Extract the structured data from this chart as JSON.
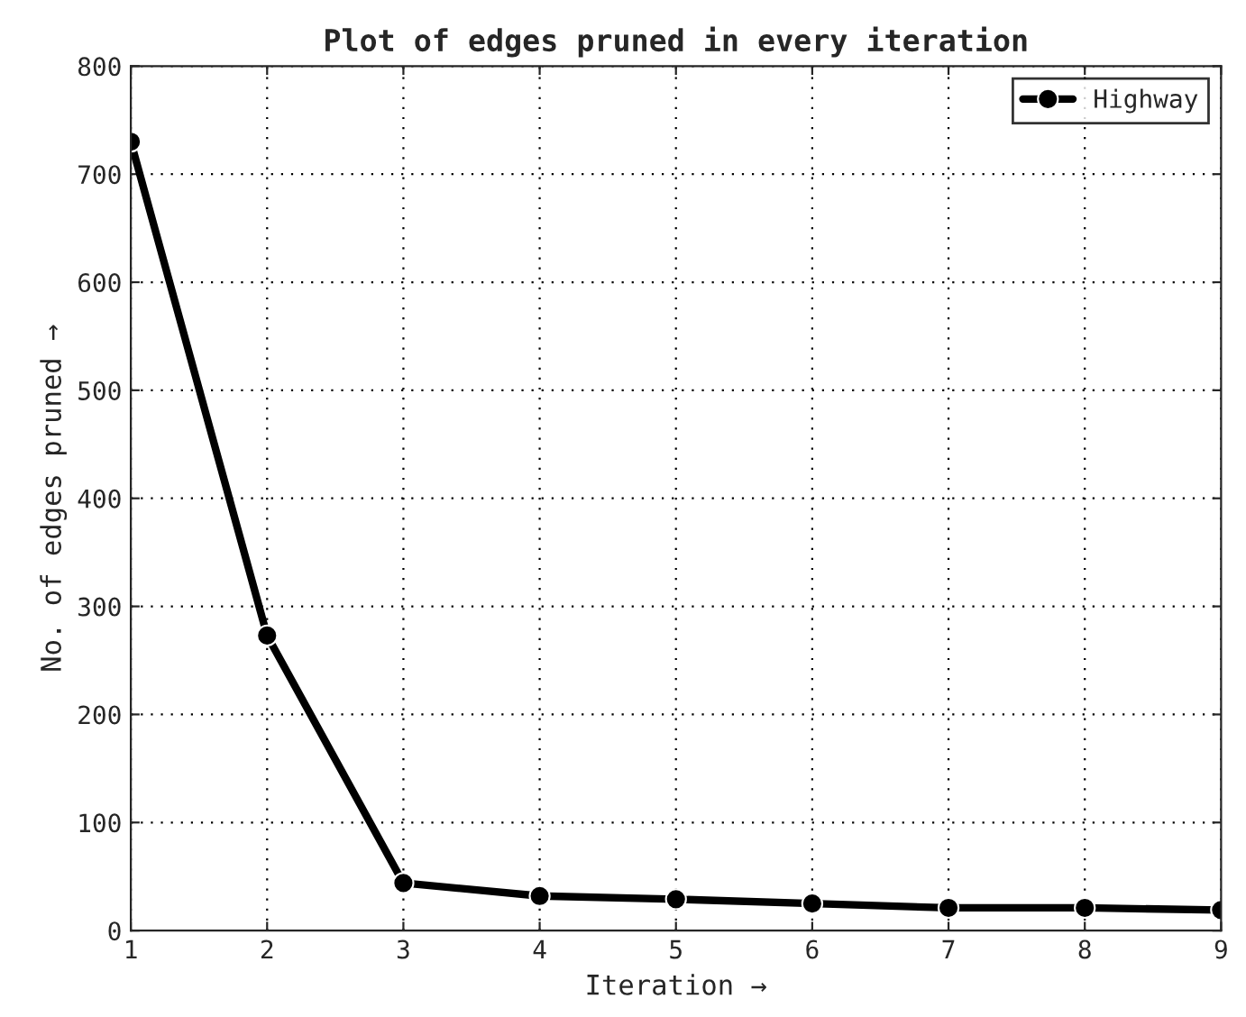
{
  "chart_data": {
    "type": "line",
    "title": "Plot of edges pruned in every iteration",
    "xlabel": "Iteration →",
    "ylabel": "No. of edges pruned →",
    "x": [
      1,
      2,
      3,
      4,
      5,
      6,
      7,
      8,
      9
    ],
    "series": [
      {
        "name": "Highway",
        "color": "#000000",
        "values": [
          730,
          273,
          44,
          32,
          29,
          25,
          21,
          21,
          19
        ]
      }
    ],
    "xlim": [
      1,
      9
    ],
    "xticks": [
      1,
      2,
      3,
      4,
      5,
      6,
      7,
      8,
      9
    ],
    "ylim": [
      0,
      800
    ],
    "yticks": [
      0,
      100,
      200,
      300,
      400,
      500,
      600,
      700,
      800
    ],
    "grid": true,
    "legend": "top right",
    "marker": "circle",
    "line_style": "solid"
  }
}
